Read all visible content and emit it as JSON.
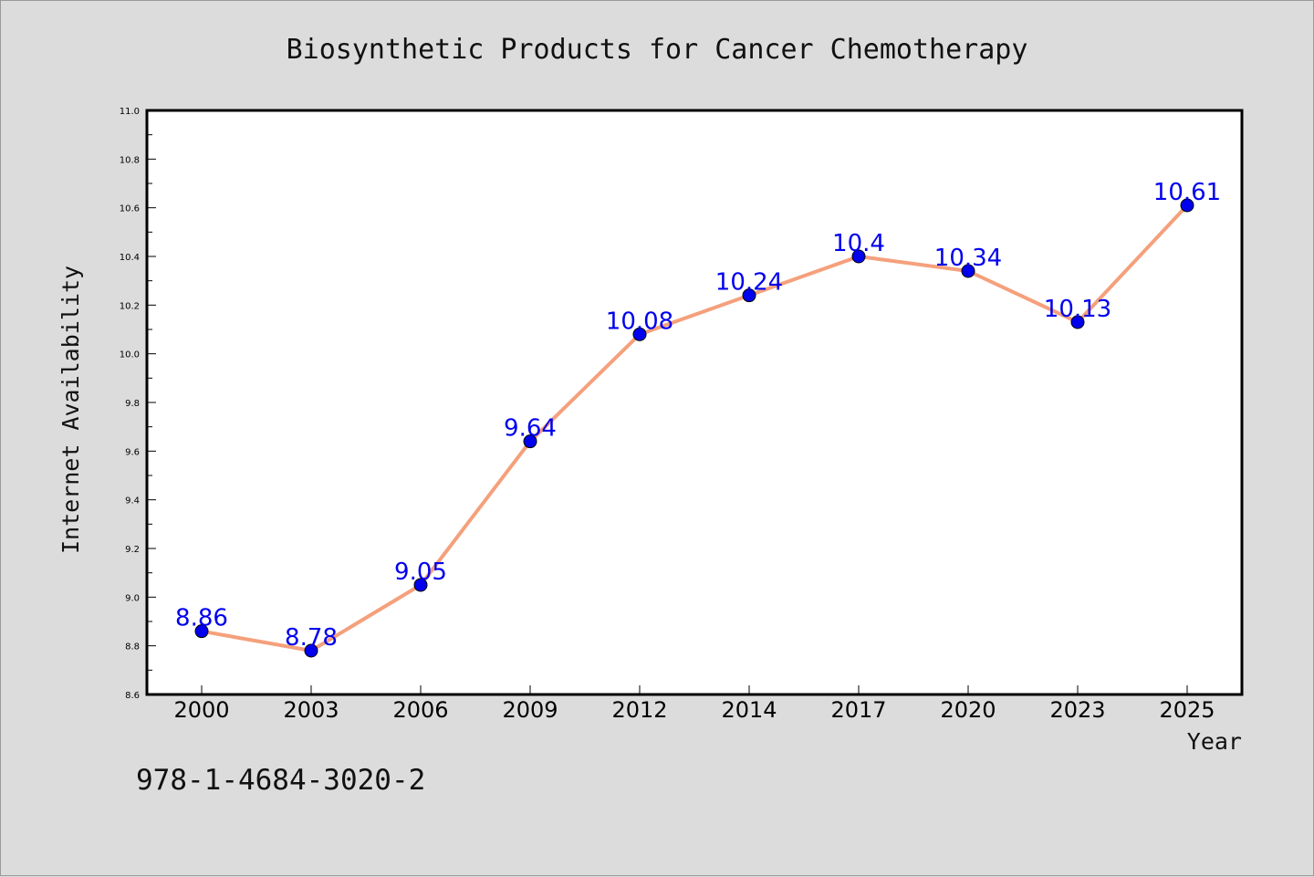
{
  "chart_data": {
    "type": "line",
    "title": "Biosynthetic Products for Cancer Chemotherapy",
    "xlabel": "Year",
    "ylabel": "Internet Availability",
    "categories": [
      "2000",
      "2003",
      "2006",
      "2009",
      "2012",
      "2014",
      "2017",
      "2020",
      "2023",
      "2025"
    ],
    "series": [
      {
        "values": [
          8.86,
          8.78,
          9.05,
          9.64,
          10.08,
          10.24,
          10.4,
          10.34,
          10.13,
          10.61
        ],
        "labels": [
          "8.86",
          "8.78",
          "9.05",
          "9.64",
          "10.08",
          "10.24",
          "10.4",
          "10.34",
          "10.13",
          "10.61"
        ],
        "line_color": "#f5a07c",
        "marker_color": "#0000ee"
      }
    ],
    "ylim": [
      8.6,
      11.0
    ],
    "yticks": [
      "8.6",
      "8.8",
      "9.0",
      "9.2",
      "9.4",
      "9.6",
      "9.8",
      "10.0",
      "10.2",
      "10.4",
      "10.6",
      "10.8",
      "11.0"
    ],
    "grid": false,
    "legend": "none"
  },
  "footnote": "978-1-4684-3020-2",
  "colors": {
    "background": "#dcdcdc",
    "plot_area": "#ffffff",
    "label_color": "#0000ee"
  }
}
